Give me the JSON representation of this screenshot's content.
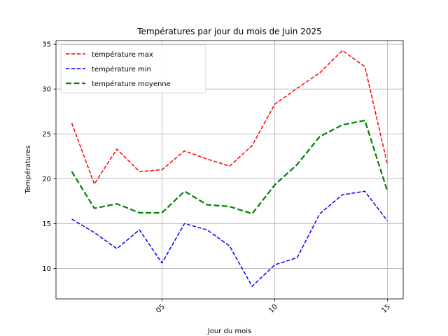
{
  "chart_data": {
    "type": "line",
    "title": "Températures par jour du mois de Juin 2025",
    "xlabel": "Jour du mois",
    "ylabel": "Températures",
    "x": [
      1,
      2,
      3,
      4,
      5,
      6,
      7,
      8,
      9,
      10,
      11,
      12,
      13,
      14,
      15
    ],
    "xlim": [
      0.3,
      15.7
    ],
    "ylim": [
      6.6,
      35.4
    ],
    "xticks": [
      {
        "value": 5,
        "label": "05"
      },
      {
        "value": 10,
        "label": "10"
      },
      {
        "value": 15,
        "label": "15"
      }
    ],
    "yticks": [
      {
        "value": 10,
        "label": "10"
      },
      {
        "value": 15,
        "label": "15"
      },
      {
        "value": 20,
        "label": "20"
      },
      {
        "value": 25,
        "label": "25"
      },
      {
        "value": 30,
        "label": "30"
      },
      {
        "value": 35,
        "label": "35"
      }
    ],
    "grid": true,
    "legend_position": "top-left",
    "series": [
      {
        "name": "température max",
        "color": "#ff0000",
        "style": "dashed",
        "values": [
          26.2,
          19.4,
          23.3,
          20.8,
          21.0,
          23.1,
          22.2,
          21.4,
          23.7,
          28.3,
          30.1,
          31.8,
          34.3,
          32.5,
          21.6
        ]
      },
      {
        "name": "température min",
        "color": "#0000ff",
        "style": "dashed",
        "values": [
          15.5,
          14.0,
          12.2,
          14.3,
          10.6,
          15.0,
          14.3,
          12.5,
          8.0,
          10.4,
          11.2,
          16.1,
          18.2,
          18.6,
          15.3
        ]
      },
      {
        "name": "température moyenne",
        "color": "#008000",
        "style": "dashed-thick",
        "values": [
          20.8,
          16.7,
          17.2,
          16.2,
          16.2,
          18.6,
          17.1,
          16.9,
          16.1,
          19.3,
          21.6,
          24.7,
          26.0,
          26.5,
          18.6
        ]
      }
    ]
  }
}
